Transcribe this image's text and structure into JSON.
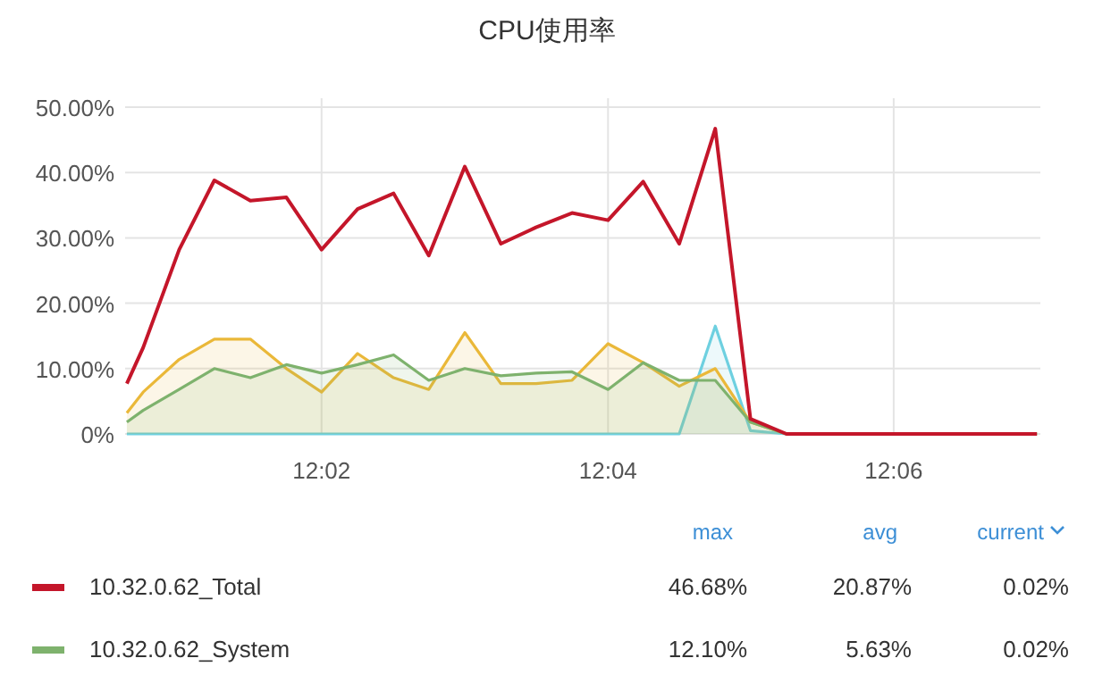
{
  "chart_data": {
    "type": "line",
    "title": "CPU使用率",
    "x": [
      12.0106,
      12.0125,
      12.0167,
      12.0208,
      12.025,
      12.0292,
      12.0333,
      12.0375,
      12.0417,
      12.0458,
      12.05,
      12.0542,
      12.0583,
      12.0625,
      12.0667,
      12.0708,
      12.075,
      12.0792,
      12.0833,
      12.0875,
      12.0917,
      12.0958,
      12.1,
      12.1042,
      12.1083,
      12.1125,
      12.1167
    ],
    "xlim": [
      12.0104,
      12.1171
    ],
    "xticks": [
      {
        "value": 12.0333,
        "label": "12:02"
      },
      {
        "value": 12.0667,
        "label": "12:04"
      },
      {
        "value": 12.1,
        "label": "12:06"
      }
    ],
    "ylim": [
      0,
      50
    ],
    "yticks": [
      {
        "value": 0,
        "label": "0%"
      },
      {
        "value": 10,
        "label": "10.00%"
      },
      {
        "value": 20,
        "label": "20.00%"
      },
      {
        "value": 30,
        "label": "30.00%"
      },
      {
        "value": 40,
        "label": "40.00%"
      },
      {
        "value": 50,
        "label": "50.00%"
      }
    ],
    "series": [
      {
        "type": "area",
        "color": "#6ed0e0",
        "values": [
          0,
          0,
          0,
          0,
          0,
          0,
          0,
          0,
          0,
          0,
          0,
          0,
          0,
          0,
          0,
          0,
          0,
          16.5,
          0.5,
          0,
          0,
          0,
          0,
          0,
          0,
          0,
          0
        ]
      },
      {
        "type": "area",
        "color": "#eab839",
        "values": [
          3.2,
          6.4,
          11.4,
          14.5,
          14.5,
          10,
          6.4,
          12.3,
          8.6,
          6.8,
          15.5,
          7.7,
          7.7,
          8.2,
          13.8,
          10.9,
          7.3,
          10,
          1.8,
          0,
          0,
          0,
          0,
          0,
          0,
          0,
          0
        ]
      },
      {
        "type": "area",
        "name": "10.32.0.62_System",
        "color": "#7eb26d",
        "values": [
          1.8,
          3.6,
          6.8,
          10,
          8.6,
          10.6,
          9.3,
          10.6,
          12.1,
          8.2,
          10,
          8.9,
          9.3,
          9.5,
          6.8,
          10.9,
          8.2,
          8.2,
          1.8,
          0,
          0,
          0,
          0,
          0,
          0,
          0,
          0
        ]
      },
      {
        "name": "10.32.0.62_Total",
        "color": "#c4162a",
        "values": [
          7.7,
          13.2,
          28.2,
          38.8,
          35.7,
          36.2,
          28.2,
          34.4,
          36.8,
          27.3,
          40.9,
          29.1,
          31.6,
          33.8,
          32.7,
          38.6,
          29.1,
          46.7,
          2.3,
          0,
          0,
          0,
          0,
          0,
          0,
          0,
          0
        ]
      }
    ],
    "grid": true,
    "legend": "bottom",
    "annotations": [
      "max",
      "avg",
      "current",
      "46.68%",
      "20.87%",
      "0.02%",
      "12.10%",
      "5.63%",
      "0.02%"
    ]
  }
}
